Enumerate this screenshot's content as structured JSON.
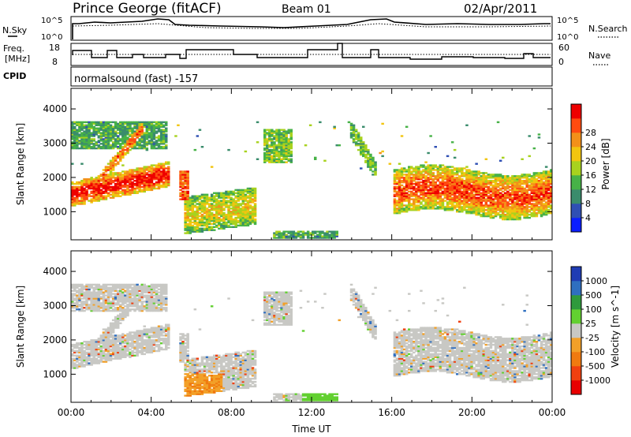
{
  "header": {
    "station": "Prince George (fitACF)",
    "beam": "Beam 01",
    "date": "02/Apr/2011"
  },
  "top_panels": {
    "nsky_label": "N.Sky",
    "nsky_ticks": [
      "10^5",
      "10^0"
    ],
    "nsearch_label": "N.Search",
    "nsearch_ticks": [
      "10^5",
      "10^0"
    ],
    "freq_label_1": "Freq.",
    "freq_label_2": "[MHz]",
    "freq_ticks": [
      "18",
      "8"
    ],
    "nave_label": "Nave",
    "nave_ticks": [
      "60",
      "0"
    ],
    "cpid_label": "CPID",
    "cpid_value": "normalsound (fast) -157"
  },
  "chart_data": [
    {
      "type": "heatmap",
      "name": "power",
      "ylabel": "Slant Range [km]",
      "xlabel": "",
      "x_ticks": [
        "00:00",
        "04:00",
        "08:00",
        "12:00",
        "16:00",
        "20:00",
        "00:00"
      ],
      "x_range_hours": [
        0,
        24
      ],
      "y_ticks": [
        1000,
        2000,
        3000,
        4000
      ],
      "ylim": [
        180,
        4600
      ],
      "colorbar": {
        "label": "Power [dB]",
        "ticks": [
          4,
          8,
          12,
          16,
          20,
          24,
          28
        ],
        "colors": [
          "#0a1eff",
          "#2f4fb4",
          "#3a8c6c",
          "#47b247",
          "#a8d21e",
          "#f2c50f",
          "#f39019",
          "#ff4b10",
          "#ee0000"
        ]
      }
    },
    {
      "type": "heatmap",
      "name": "velocity",
      "ylabel": "Slant Range [km]",
      "xlabel": "Time UT",
      "x_ticks": [
        "00:00",
        "04:00",
        "08:00",
        "12:00",
        "16:00",
        "20:00",
        "00:00"
      ],
      "x_range_hours": [
        0,
        24
      ],
      "y_ticks": [
        1000,
        2000,
        3000,
        4000
      ],
      "ylim": [
        180,
        4600
      ],
      "colorbar": {
        "label": "Velocity [m s^-1]",
        "ticks": [
          "1000",
          "500",
          "100",
          "25",
          "-25",
          "-100",
          "-500",
          "-1000"
        ],
        "colors": [
          "#1f3cb4",
          "#2f6fc0",
          "#2f9a3c",
          "#62d030",
          "#c8c8c4",
          "#f2a028",
          "#f07a10",
          "#f04010",
          "#e80000"
        ]
      }
    }
  ]
}
